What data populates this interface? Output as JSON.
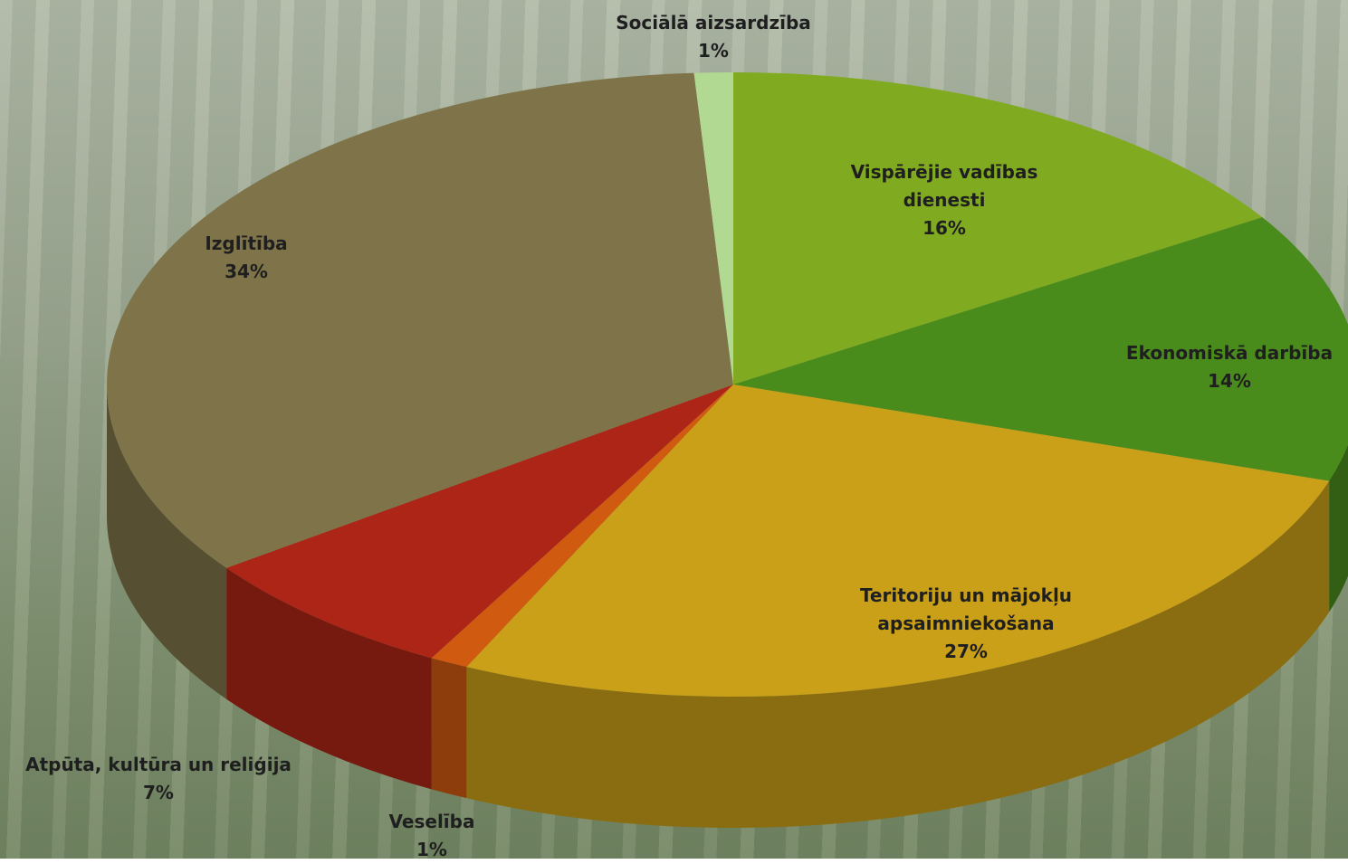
{
  "chart_data": {
    "type": "pie",
    "categories": [
      "Vispārējie vadības dienesti",
      "Ekonomiskā darbība",
      "Teritoriju un mājokļu apsaimniekošana",
      "Veselība",
      "Atpūta, kultūra un reliģija",
      "Izglītība",
      "Sociālā aizsardzība"
    ],
    "values": [
      16,
      14,
      27,
      1,
      7,
      34,
      1
    ],
    "value_labels": [
      "16%",
      "14%",
      "27%",
      "1%",
      "7%",
      "34%",
      "1%"
    ],
    "colors": [
      "#80aa1f",
      "#4a8c1c",
      "#c9a018",
      "#d05a10",
      "#ad2516",
      "#7f7449",
      "#b2d992"
    ]
  }
}
